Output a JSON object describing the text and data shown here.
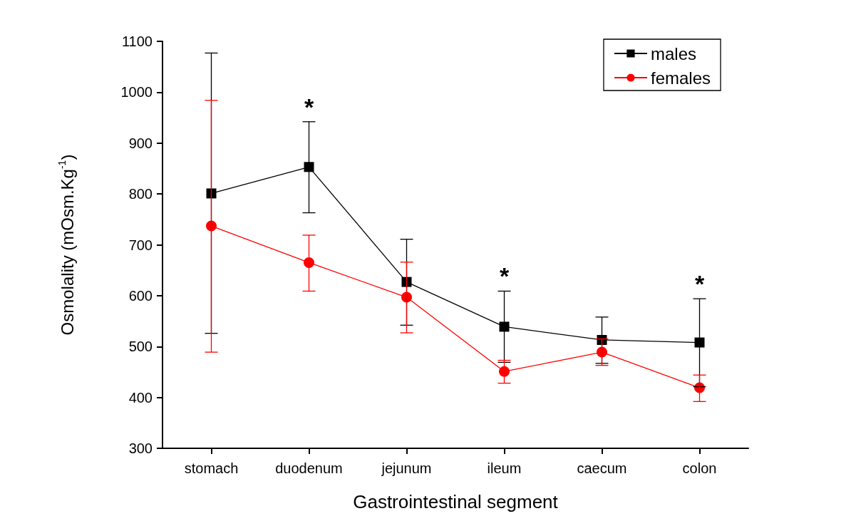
{
  "chart_data": {
    "type": "line",
    "xlabel": "Gastrointestinal segment",
    "ylabel": "Osmolality (mOsm.Kg$^{-1}$)",
    "categories": [
      "stomach",
      "duodenum",
      "jejunum",
      "ileum",
      "caecum",
      "colon"
    ],
    "series": [
      {
        "name": "males",
        "color": "#000000",
        "marker": "square",
        "values": [
          801,
          853,
          627,
          539,
          513,
          508
        ],
        "errors": [
          [
            526,
            1077
          ],
          [
            763,
            942
          ],
          [
            542,
            711
          ],
          [
            469,
            609
          ],
          [
            467,
            558
          ],
          [
            421,
            594
          ]
        ]
      },
      {
        "name": "females",
        "color": "#ff0000",
        "marker": "circle",
        "values": [
          737,
          665,
          597,
          451,
          489,
          419
        ],
        "errors": [
          [
            489,
            984
          ],
          [
            609,
            719
          ],
          [
            527,
            666
          ],
          [
            428,
            473
          ],
          [
            463,
            515
          ],
          [
            392,
            444
          ]
        ]
      }
    ],
    "ylim": [
      300,
      1100
    ],
    "yticks": [
      300,
      400,
      500,
      600,
      700,
      800,
      900,
      {
        "value": 1000,
        "label": "1000"
      },
      {
        "value": 1100,
        "label": "1100"
      }
    ],
    "grid": false,
    "legend": "top right",
    "annotations": [
      {
        "text": "*",
        "x": "duodenum",
        "y": 942
      },
      {
        "text": "*",
        "x": "ileum",
        "y": 609
      },
      {
        "text": "*",
        "x": "colon",
        "y": 594
      }
    ]
  }
}
